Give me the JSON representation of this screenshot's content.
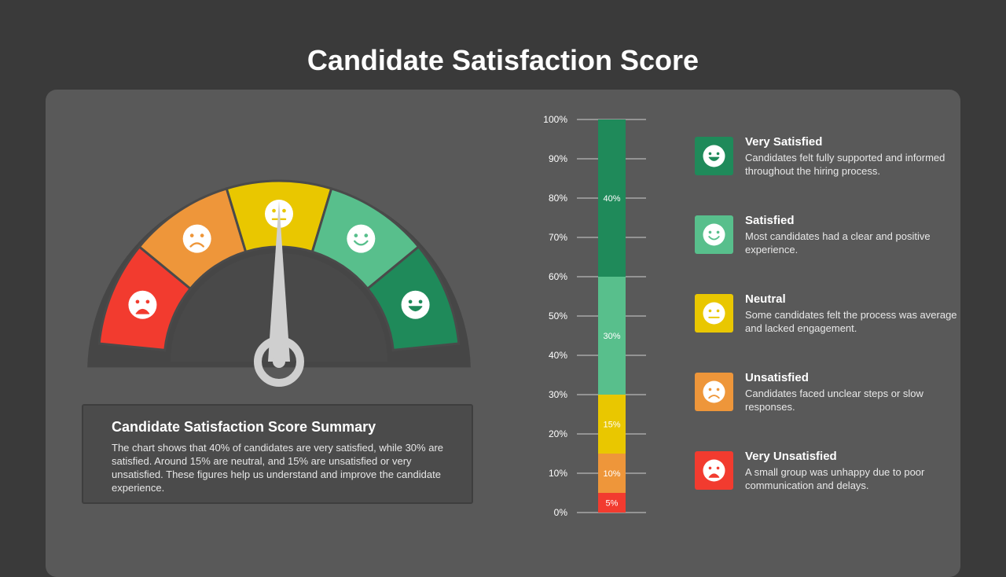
{
  "title": "Candidate Satisfaction Score",
  "summary": {
    "title": "Candidate Satisfaction Score Summary",
    "text": "The chart shows that 40% of candidates are very satisfied, while 30% are satisfied. Around 15% are neutral, and 15% are unsatisfied or very unsatisfied. These figures help us understand and improve the candidate experience."
  },
  "chart_data": [
    {
      "type": "gauge",
      "segments": [
        {
          "name": "Very Unsatisfied",
          "color": "#f23b2f",
          "icon": "very-sad-face-icon"
        },
        {
          "name": "Unsatisfied",
          "color": "#ee963a",
          "icon": "sad-face-icon"
        },
        {
          "name": "Neutral",
          "color": "#e9c700",
          "icon": "neutral-face-icon"
        },
        {
          "name": "Satisfied",
          "color": "#58bf8c",
          "icon": "smile-face-icon"
        },
        {
          "name": "Very Satisfied",
          "color": "#1f8a5a",
          "icon": "happy-face-icon"
        }
      ],
      "needle_fraction": 0.5
    },
    {
      "type": "bar",
      "orientation": "vertical-stacked",
      "ylim": [
        0,
        100
      ],
      "yticks": [
        "0%",
        "10%",
        "20%",
        "30%",
        "40%",
        "50%",
        "60%",
        "70%",
        "80%",
        "90%",
        "100%"
      ],
      "series": [
        {
          "name": "Very Unsatisfied",
          "value": 5,
          "label": "5%",
          "color": "#f23b2f"
        },
        {
          "name": "Unsatisfied",
          "value": 10,
          "label": "10%",
          "color": "#ee963a"
        },
        {
          "name": "Neutral",
          "value": 15,
          "label": "15%",
          "color": "#e9c700"
        },
        {
          "name": "Satisfied",
          "value": 30,
          "label": "30%",
          "color": "#58bf8c"
        },
        {
          "name": "Very Satisfied",
          "value": 40,
          "label": "40%",
          "color": "#1f8a5a"
        }
      ]
    }
  ],
  "legend": [
    {
      "label": "Very Satisfied",
      "desc": "Candidates felt fully supported and informed throughout the hiring process.",
      "color": "#1f8a5a",
      "icon": "happy-face-icon"
    },
    {
      "label": "Satisfied",
      "desc": "Most candidates had a clear and positive experience.",
      "color": "#58bf8c",
      "icon": "smile-face-icon"
    },
    {
      "label": "Neutral",
      "desc": "Some candidates felt the process was average and lacked engagement.",
      "color": "#e9c700",
      "icon": "neutral-face-icon"
    },
    {
      "label": "Unsatisfied",
      "desc": "Candidates faced unclear steps or slow responses.",
      "color": "#ee963a",
      "icon": "sad-face-icon"
    },
    {
      "label": "Very Unsatisfied",
      "desc": "A small group was unhappy due to poor communication and delays.",
      "color": "#f23b2f",
      "icon": "very-sad-face-icon"
    }
  ]
}
